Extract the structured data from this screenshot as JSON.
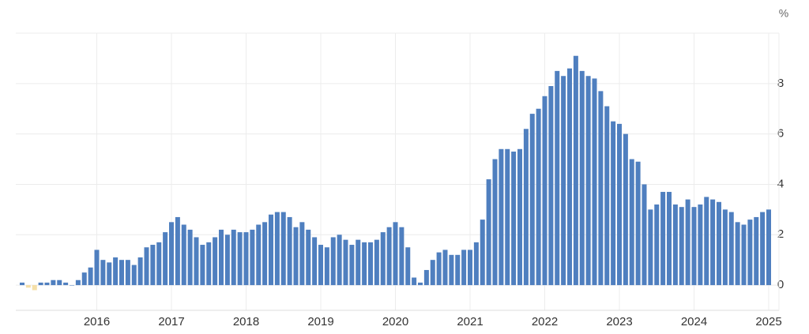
{
  "chart_data": {
    "type": "bar",
    "unit": "%",
    "categories": [
      null,
      null,
      null,
      null,
      null,
      null,
      null,
      null,
      null,
      null,
      null,
      null,
      "2016",
      null,
      null,
      null,
      null,
      null,
      null,
      null,
      null,
      null,
      null,
      null,
      "2017",
      null,
      null,
      null,
      null,
      null,
      null,
      null,
      null,
      null,
      null,
      null,
      "2018",
      null,
      null,
      null,
      null,
      null,
      null,
      null,
      null,
      null,
      null,
      null,
      "2019",
      null,
      null,
      null,
      null,
      null,
      null,
      null,
      null,
      null,
      null,
      null,
      "2020",
      null,
      null,
      null,
      null,
      null,
      null,
      null,
      null,
      null,
      null,
      null,
      "2021",
      null,
      null,
      null,
      null,
      null,
      null,
      null,
      null,
      null,
      null,
      null,
      "2022",
      null,
      null,
      null,
      null,
      null,
      null,
      null,
      null,
      null,
      null,
      null,
      "2023",
      null,
      null,
      null,
      null,
      null,
      null,
      null,
      null,
      null,
      null,
      null,
      "2024",
      null,
      null,
      null,
      null,
      null,
      null,
      null,
      null,
      null,
      null,
      null,
      "2025"
    ],
    "values": [
      0.1,
      -0.1,
      -0.2,
      0.1,
      0.1,
      0.2,
      0.2,
      0.1,
      0.0,
      0.2,
      0.5,
      0.7,
      1.4,
      1.0,
      0.9,
      1.1,
      1.0,
      1.0,
      0.8,
      1.1,
      1.5,
      1.6,
      1.7,
      2.1,
      2.5,
      2.7,
      2.4,
      2.2,
      1.9,
      1.6,
      1.7,
      1.9,
      2.2,
      2.0,
      2.2,
      2.1,
      2.1,
      2.2,
      2.4,
      2.5,
      2.8,
      2.9,
      2.9,
      2.7,
      2.3,
      2.5,
      2.2,
      1.9,
      1.6,
      1.5,
      1.9,
      2.0,
      1.8,
      1.6,
      1.8,
      1.7,
      1.7,
      1.8,
      2.1,
      2.3,
      2.5,
      2.3,
      1.5,
      0.3,
      0.1,
      0.6,
      1.0,
      1.3,
      1.4,
      1.2,
      1.2,
      1.4,
      1.4,
      1.7,
      2.6,
      4.2,
      5.0,
      5.4,
      5.4,
      5.3,
      5.4,
      6.2,
      6.8,
      7.0,
      7.5,
      7.9,
      8.5,
      8.3,
      8.6,
      9.1,
      8.5,
      8.3,
      8.2,
      7.7,
      7.1,
      6.5,
      6.4,
      6.0,
      5.0,
      4.9,
      4.0,
      3.0,
      3.2,
      3.7,
      3.7,
      3.2,
      3.1,
      3.4,
      3.1,
      3.2,
      3.5,
      3.4,
      3.3,
      3.0,
      2.9,
      2.5,
      2.4,
      2.6,
      2.7,
      2.9,
      3.0
    ],
    "color": "#4f7fbf",
    "negative_color": "#f5dfa8",
    "ylim": [
      -1,
      10
    ],
    "yticks": [
      0,
      2,
      4,
      6,
      8
    ],
    "grid": true
  }
}
